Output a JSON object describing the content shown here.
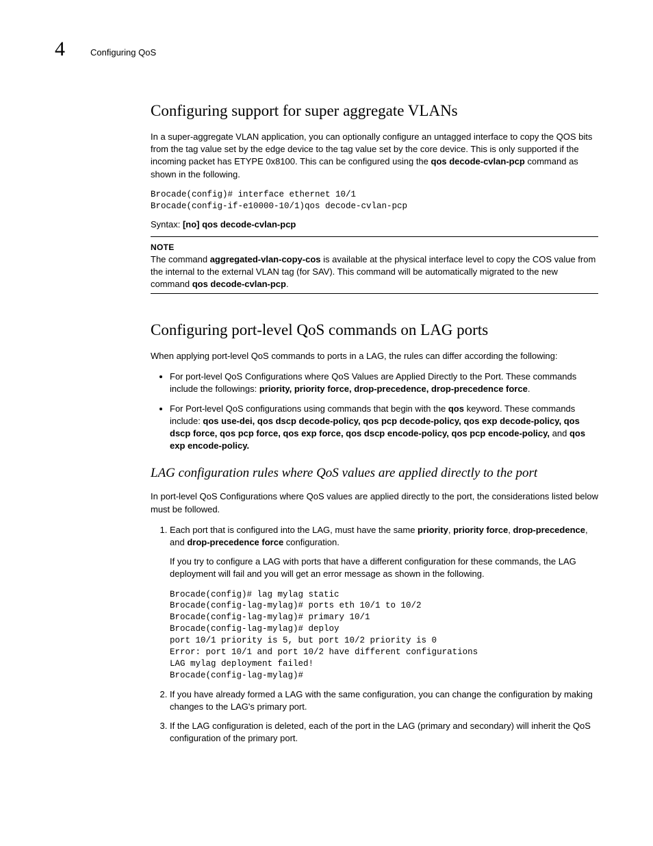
{
  "header": {
    "chapter_number": "4",
    "breadcrumb": "Configuring QoS"
  },
  "section1": {
    "title": "Configuring support for super aggregate VLANs",
    "intro_part1": "In a super-aggregate VLAN application, you can optionally configure an untagged interface to copy the QOS bits from the tag value set by the edge device to the tag value set by the core device. This is only supported if the incoming packet has ETYPE 0x8100. This can be configured using the ",
    "intro_cmd": "qos decode-cvlan-pcp",
    "intro_part2": " command as shown in the following.",
    "code": "Brocade(config)# interface ethernet 10/1\nBrocade(config-if-e10000-10/1)qos decode-cvlan-pcp",
    "syntax_label": "Syntax:  ",
    "syntax_cmd": "[no] qos decode-cvlan-pcp",
    "note_title": "NOTE",
    "note_part1": "The command ",
    "note_cmd1": "aggregated-vlan-copy-cos",
    "note_part2": " is available at the physical interface level to copy the COS value from the internal to the external VLAN tag (for SAV). This command will be automatically migrated to the new command ",
    "note_cmd2": "qos decode-cvlan-pcp",
    "note_part3": "."
  },
  "section2": {
    "title": "Configuring port-level QoS commands on LAG ports",
    "intro": "When applying port-level QoS commands to ports in a LAG, the rules can differ according the following:",
    "bullet1_part1": "For port-level QoS Configurations where QoS Values are Applied Directly to the Port. These commands include the followings: ",
    "bullet1_bold": "priority, priority force, drop-precedence, drop-precedence force",
    "bullet1_part2": ".",
    "bullet2_part1": "For Port-level QoS configurations using commands that begin with the ",
    "bullet2_kw": "qos",
    "bullet2_part2": " keyword. These commands include: ",
    "bullet2_bold1": "qos use-dei, qos dscp decode-policy, qos pcp decode-policy, qos exp decode-policy, qos dscp force, qos pcp force, qos exp force, qos dscp encode-policy, qos pcp encode-policy,",
    "bullet2_mid": " and ",
    "bullet2_bold2": "qos exp encode-policy.",
    "subsection_title": "LAG configuration rules where QoS values are applied directly to the port",
    "sub_intro": "In port-level QoS Configurations where QoS values are applied directly to the port, the considerations listed below must be followed.",
    "item1_part1": "Each port that is configured into the LAG, must have the same ",
    "item1_bold1": "priority",
    "item1_c1": ", ",
    "item1_bold2": "priority force",
    "item1_c2": ", ",
    "item1_bold3": "drop-precedence",
    "item1_c3": ", and ",
    "item1_bold4": "drop-precedence force",
    "item1_part2": " configuration.",
    "item1_sub": "If you try to configure a LAG with ports that have a different configuration for these commands, the LAG deployment will fail and you will get an error message as shown in the following.",
    "item1_code": "Brocade(config)# lag mylag static\nBrocade(config-lag-mylag)# ports eth 10/1 to 10/2\nBrocade(config-lag-mylag)# primary 10/1\nBrocade(config-lag-mylag)# deploy\nport 10/1 priority is 5, but port 10/2 priority is 0\nError: port 10/1 and port 10/2 have different configurations\nLAG mylag deployment failed!\nBrocade(config-lag-mylag)#",
    "item2": "If you have already formed a LAG with the same configuration, you can change the configuration by making changes to the LAG's primary port.",
    "item3": "If the LAG configuration is deleted, each of the port in the LAG (primary and secondary) will inherit the QoS configuration of the primary port."
  }
}
